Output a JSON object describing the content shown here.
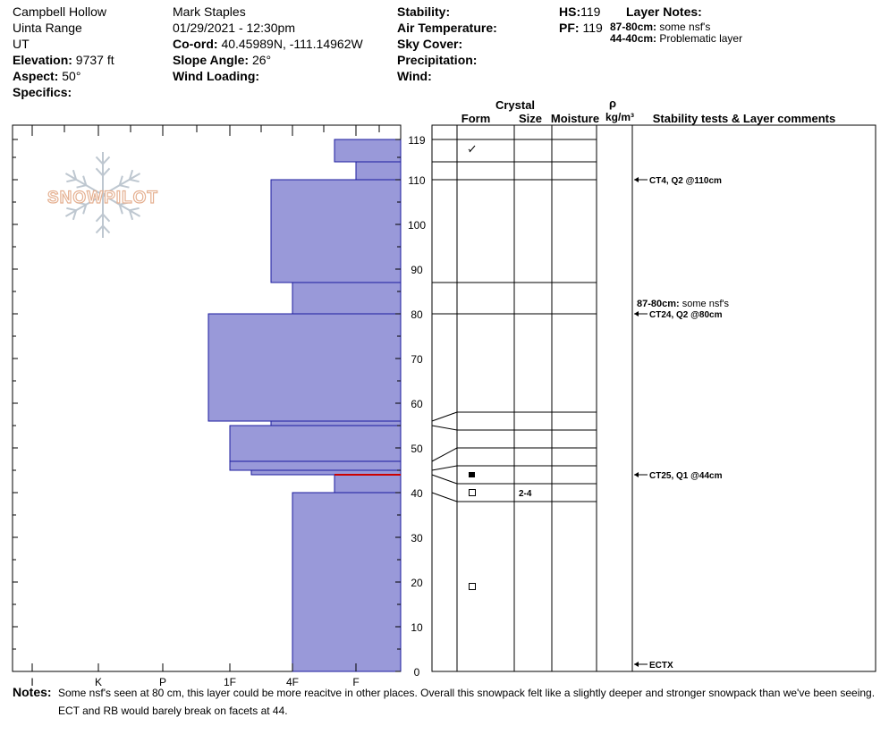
{
  "header": {
    "location": "Campbell Hollow",
    "range": "Uinta Range",
    "state": "UT",
    "elevation_label": "Elevation:",
    "elevation": "9737 ft",
    "aspect_label": "Aspect:",
    "aspect": "50°",
    "specifics_label": "Specifics:",
    "observer": "Mark Staples",
    "datetime": "01/29/2021 - 12:30pm",
    "coord_label": "Co-ord:",
    "coord": "40.45989N, -111.14962W",
    "slope_label": "Slope Angle:",
    "slope": "26°",
    "wind_loading_label": "Wind Loading:",
    "stability_label": "Stability:",
    "air_temp_label": "Air Temperature:",
    "sky_label": "Sky Cover:",
    "precip_label": "Precipitation:",
    "wind_label": "Wind:",
    "hs_label": "HS:",
    "hs": "119",
    "pf_label": "PF:",
    "pf": "119",
    "layer_notes_label": "Layer Notes:",
    "layer_notes": [
      {
        "range": "87-80cm:",
        "text": "some nsf's"
      },
      {
        "range": "44-40cm:",
        "text": "Problematic layer"
      }
    ]
  },
  "logo_text": "SNOWPILOT",
  "columns": {
    "crystal": "Crystal",
    "form": "Form",
    "size": "Size",
    "moisture": "Moisture",
    "rho": "ρ",
    "density_unit": "kg/m³",
    "stability": "Stability tests & Layer comments"
  },
  "notes_label": "Notes:",
  "notes_line1": "Some nsf's seen at 80 cm, this layer could be more reacitve in other places. Overall this snowpack felt like a slightly deeper and stronger snowpack than we've been seeing.",
  "notes_line2": "ECT and RB would barely break on facets at 44.",
  "colors": {
    "hardness_fill": "#9999d9",
    "hardness_stroke": "#1a1a9e",
    "problem_layer": "#cc0000"
  },
  "chart_data": {
    "type": "bar",
    "title": "",
    "ylabel": "",
    "ylim": [
      0,
      122
    ],
    "y_ticks": [
      "0",
      "10",
      "20",
      "30",
      "40",
      "50",
      "60",
      "70",
      "80",
      "90",
      "100",
      "110",
      "119"
    ],
    "x_ticks": [
      "I",
      "K",
      "P",
      "1F",
      "4F",
      "F"
    ],
    "hardness_profile": [
      {
        "top": 119,
        "bottom": 114,
        "hardness": "F+"
      },
      {
        "top": 114,
        "bottom": 110,
        "hardness": "F"
      },
      {
        "top": 110,
        "bottom": 87,
        "hardness": "4F+"
      },
      {
        "top": 87,
        "bottom": 80,
        "hardness": "4F"
      },
      {
        "top": 80,
        "bottom": 56,
        "hardness": "1F+"
      },
      {
        "top": 56,
        "bottom": 55,
        "hardness": "4F+"
      },
      {
        "top": 55,
        "bottom": 47,
        "hardness": "1F"
      },
      {
        "top": 47,
        "bottom": 45,
        "hardness": "1F"
      },
      {
        "top": 45,
        "bottom": 44,
        "hardness": "1F-"
      },
      {
        "top": 44,
        "bottom": 40,
        "hardness": "F+"
      },
      {
        "top": 40,
        "bottom": 0,
        "hardness": "4F"
      }
    ],
    "problem_layer_depth": 44,
    "layer_boundaries": [
      119,
      114,
      110,
      87,
      80,
      58,
      54,
      50,
      46,
      42,
      38
    ],
    "grain_rows": [
      {
        "depth": 117,
        "form": "decomposing",
        "size": ""
      },
      {
        "depth": 44,
        "form": "depth hoar",
        "size": ""
      },
      {
        "depth": 40,
        "form": "faceted",
        "size": "2-4"
      },
      {
        "depth": 19,
        "form": "faceted",
        "size": ""
      }
    ],
    "stability_tests": [
      {
        "depth": 110,
        "text": "CT4, Q2 @110cm"
      },
      {
        "depth": 80,
        "text": "CT24, Q2 @80cm"
      },
      {
        "depth": 44,
        "text": "CT25, Q1 @44cm"
      },
      {
        "depth": 0,
        "text": "ECTX"
      }
    ],
    "layer_comment": {
      "depth": 80,
      "range": "87-80cm:",
      "text": "some nsf's"
    }
  }
}
